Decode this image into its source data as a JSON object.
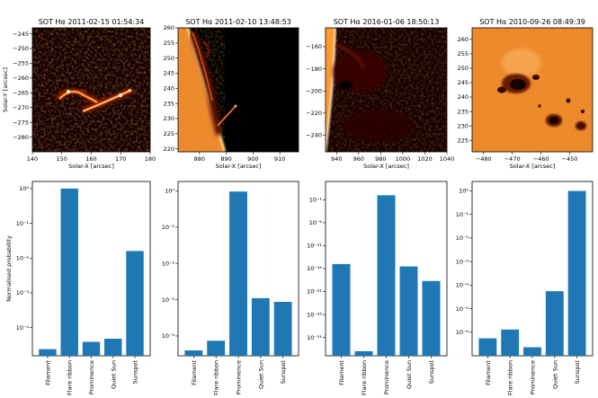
{
  "chart_data": [
    {
      "type": "heatmap",
      "title": "SOT Hα 2011-02-15 01:54:34",
      "xlabel": "Solar-X [arcsec]",
      "ylabel": "Solar-Y [arcsec]",
      "xlim": [
        140,
        180
      ],
      "ylim": [
        -285,
        -243
      ],
      "xticks": [
        {
          "v": 140,
          "l": "140"
        },
        {
          "v": 150,
          "l": "150"
        },
        {
          "v": 160,
          "l": "160"
        },
        {
          "v": 170,
          "l": "170"
        },
        {
          "v": 180,
          "l": "180"
        }
      ],
      "yticks": [
        {
          "v": -245,
          "l": "−245"
        },
        {
          "v": -250,
          "l": "−250"
        },
        {
          "v": -255,
          "l": "−255"
        },
        {
          "v": -260,
          "l": "−260"
        },
        {
          "v": -265,
          "l": "−265"
        },
        {
          "v": -270,
          "l": "−270"
        },
        {
          "v": -275,
          "l": "−275"
        },
        {
          "v": -280,
          "l": "−280"
        }
      ]
    },
    {
      "type": "heatmap",
      "title": "SOT Hα 2011-02-10 13:48:53",
      "xlabel": "Solar-X [arcsec]",
      "ylabel": "",
      "xlim": [
        872,
        917
      ],
      "ylim": [
        219,
        260
      ],
      "xticks": [
        {
          "v": 880,
          "l": "880"
        },
        {
          "v": 890,
          "l": "890"
        },
        {
          "v": 900,
          "l": "900"
        },
        {
          "v": 910,
          "l": "910"
        }
      ],
      "yticks": [
        {
          "v": 220,
          "l": "220"
        },
        {
          "v": 225,
          "l": "225"
        },
        {
          "v": 230,
          "l": "230"
        },
        {
          "v": 235,
          "l": "235"
        },
        {
          "v": 240,
          "l": "240"
        },
        {
          "v": 245,
          "l": "245"
        },
        {
          "v": 250,
          "l": "250"
        },
        {
          "v": 255,
          "l": "255"
        },
        {
          "v": 260,
          "l": "260"
        }
      ]
    },
    {
      "type": "heatmap",
      "title": "SOT Hα 2016-01-06 18:50:13",
      "xlabel": "Solar-X [arcsec]",
      "ylabel": "",
      "xlim": [
        930,
        1040
      ],
      "ylim": [
        -255,
        -143
      ],
      "xticks": [
        {
          "v": 940,
          "l": "940"
        },
        {
          "v": 960,
          "l": "960"
        },
        {
          "v": 980,
          "l": "980"
        },
        {
          "v": 1000,
          "l": "1000"
        },
        {
          "v": 1020,
          "l": "1020"
        },
        {
          "v": 1040,
          "l": "1040"
        }
      ],
      "yticks": [
        {
          "v": -160,
          "l": "−160"
        },
        {
          "v": -180,
          "l": "−180"
        },
        {
          "v": -200,
          "l": "−200"
        },
        {
          "v": -220,
          "l": "−220"
        },
        {
          "v": -240,
          "l": "−240"
        }
      ]
    },
    {
      "type": "heatmap",
      "title": "SOT Hα 2010-09-26 08:49:39",
      "xlabel": "Solar-X [arcsec]",
      "ylabel": "",
      "xlim": [
        -484,
        -442
      ],
      "ylim": [
        221,
        264
      ],
      "xticks": [
        {
          "v": -480,
          "l": "−480"
        },
        {
          "v": -470,
          "l": "−470"
        },
        {
          "v": -460,
          "l": "−460"
        },
        {
          "v": -450,
          "l": "−450"
        }
      ],
      "yticks": [
        {
          "v": 225,
          "l": "225"
        },
        {
          "v": 230,
          "l": "230"
        },
        {
          "v": 235,
          "l": "235"
        },
        {
          "v": 240,
          "l": "240"
        },
        {
          "v": 245,
          "l": "245"
        },
        {
          "v": 250,
          "l": "250"
        },
        {
          "v": 255,
          "l": "255"
        },
        {
          "v": 260,
          "l": "260"
        }
      ]
    },
    {
      "type": "bar",
      "xlabel": "",
      "ylabel": "Normalised probability",
      "categories": [
        "Filament",
        "Flare ribbon",
        "Prominence",
        "Quiet Sun",
        "Sunspot"
      ],
      "values": [
        2.4e-05,
        1.0,
        3.9e-05,
        4.8e-05,
        0.016
      ],
      "ylim": [
        1.55e-05,
        1.6
      ],
      "yscale": "log",
      "yticks": [
        {
          "v": 0.0001,
          "l": "10⁻⁴"
        },
        {
          "v": 0.001,
          "l": "10⁻³"
        },
        {
          "v": 0.01,
          "l": "10⁻²"
        },
        {
          "v": 0.1,
          "l": "10⁻¹"
        },
        {
          "v": 1,
          "l": "10⁰"
        }
      ]
    },
    {
      "type": "bar",
      "xlabel": "",
      "ylabel": "",
      "categories": [
        "Filament",
        "Flare ribbon",
        "Prominence",
        "Quiet Sun",
        "Sunspot"
      ],
      "values": [
        4e-05,
        7.4e-05,
        0.95,
        0.0011,
        0.00087
      ],
      "ylim": [
        2.85e-05,
        1.8
      ],
      "yscale": "log",
      "yticks": [
        {
          "v": 0.0001,
          "l": "10⁻⁴"
        },
        {
          "v": 0.001,
          "l": "10⁻³"
        },
        {
          "v": 0.01,
          "l": "10⁻²"
        },
        {
          "v": 0.1,
          "l": "10⁻¹"
        },
        {
          "v": 1,
          "l": "10⁰"
        }
      ]
    },
    {
      "type": "bar",
      "xlabel": "",
      "ylabel": "",
      "categories": [
        "Filament",
        "Flare ribbon",
        "Prominence",
        "Quiet Sun",
        "Sunspot"
      ],
      "values": [
        1e-15,
        1e-34,
        0.99,
        3e-16,
        2e-19
      ],
      "ylim": [
        1e-35,
        1000
      ],
      "yscale": "log",
      "yticks": [
        {
          "v": 0.1,
          "l": "10⁻¹"
        },
        {
          "v": 1e-06,
          "l": "10⁻⁶"
        },
        {
          "v": 1e-11,
          "l": "10⁻¹¹"
        },
        {
          "v": 1e-16,
          "l": "10⁻¹⁶"
        },
        {
          "v": 1e-21,
          "l": "10⁻²¹"
        },
        {
          "v": 1e-26,
          "l": "10⁻²⁶"
        },
        {
          "v": 1e-31,
          "l": "10⁻³¹"
        }
      ]
    },
    {
      "type": "bar",
      "xlabel": "",
      "ylabel": "",
      "categories": [
        "Filament",
        "Flare ribbon",
        "Prominence",
        "Quiet Sun",
        "Sunspot"
      ],
      "values": [
        5.5e-07,
        1.3e-06,
        2.3e-07,
        5.5e-05,
        0.99
      ],
      "ylim": [
        1e-07,
        2.5
      ],
      "yscale": "log",
      "yticks": [
        {
          "v": 1,
          "l": "10⁰"
        },
        {
          "v": 0.1,
          "l": "10⁻¹"
        },
        {
          "v": 0.01,
          "l": "10⁻²"
        },
        {
          "v": 0.001,
          "l": "10⁻³"
        },
        {
          "v": 0.0001,
          "l": "10⁻⁴"
        },
        {
          "v": 1e-05,
          "l": "10⁻⁵"
        },
        {
          "v": 1e-06,
          "l": "10⁻⁶"
        }
      ]
    }
  ],
  "colors": {
    "bar": "#1f77b4",
    "axis": "#000000",
    "dark": "#000000",
    "mid": "#7a1800",
    "bright": "#ff9a33",
    "white": "#fff2d8",
    "photosphere": "#f08a2a"
  }
}
